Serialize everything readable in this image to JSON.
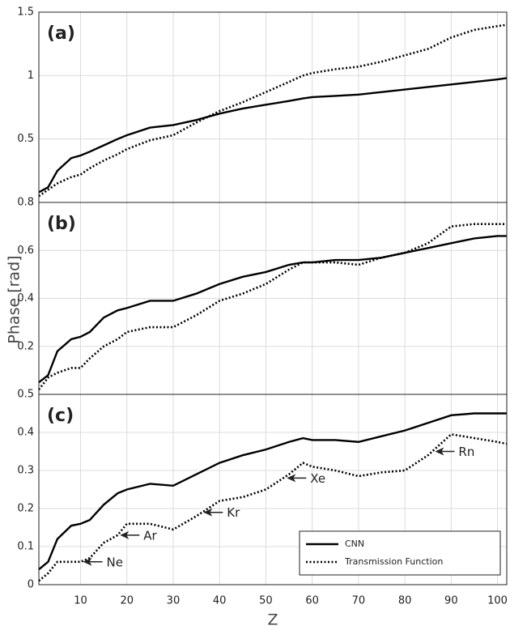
{
  "chart_data": [
    {
      "type": "line",
      "label": "(a)",
      "xlim": [
        1,
        102
      ],
      "ylim": [
        0,
        1.5
      ],
      "yticks": [
        0.5,
        1,
        1.5
      ],
      "grid": true,
      "x": [
        1,
        3,
        5,
        8,
        10,
        12,
        15,
        18,
        20,
        25,
        30,
        35,
        40,
        45,
        50,
        55,
        58,
        60,
        65,
        70,
        75,
        80,
        85,
        90,
        95,
        100,
        102
      ],
      "series": [
        {
          "name": "CNN",
          "color": "#000000",
          "style": "solid",
          "values": [
            0.08,
            0.12,
            0.25,
            0.35,
            0.37,
            0.4,
            0.45,
            0.5,
            0.53,
            0.59,
            0.61,
            0.65,
            0.7,
            0.74,
            0.77,
            0.8,
            0.82,
            0.83,
            0.84,
            0.85,
            0.87,
            0.89,
            0.91,
            0.93,
            0.95,
            0.97,
            0.98
          ]
        },
        {
          "name": "Transmission Function",
          "color": "#000000",
          "style": "dotted",
          "values": [
            0.05,
            0.1,
            0.15,
            0.2,
            0.22,
            0.27,
            0.33,
            0.38,
            0.42,
            0.49,
            0.53,
            0.63,
            0.72,
            0.79,
            0.87,
            0.95,
            1.0,
            1.02,
            1.05,
            1.07,
            1.11,
            1.16,
            1.21,
            1.3,
            1.36,
            1.39,
            1.4
          ]
        }
      ]
    },
    {
      "type": "line",
      "label": "(b)",
      "ylabel": "Phase [rad]",
      "xlim": [
        1,
        102
      ],
      "ylim": [
        0,
        0.8
      ],
      "yticks": [
        0.2,
        0.4,
        0.6,
        0.8
      ],
      "grid": true,
      "x": [
        1,
        3,
        5,
        8,
        10,
        12,
        15,
        18,
        20,
        25,
        30,
        35,
        40,
        45,
        50,
        55,
        58,
        60,
        65,
        70,
        75,
        80,
        85,
        90,
        95,
        100,
        102
      ],
      "series": [
        {
          "name": "CNN",
          "color": "#000000",
          "style": "solid",
          "values": [
            0.05,
            0.08,
            0.18,
            0.23,
            0.24,
            0.26,
            0.32,
            0.35,
            0.36,
            0.39,
            0.39,
            0.42,
            0.46,
            0.49,
            0.51,
            0.54,
            0.55,
            0.55,
            0.56,
            0.56,
            0.57,
            0.59,
            0.61,
            0.63,
            0.65,
            0.66,
            0.66
          ]
        },
        {
          "name": "Transmission Function",
          "color": "#000000",
          "style": "dotted",
          "values": [
            0.02,
            0.07,
            0.09,
            0.11,
            0.11,
            0.15,
            0.2,
            0.23,
            0.26,
            0.28,
            0.28,
            0.33,
            0.39,
            0.42,
            0.46,
            0.52,
            0.55,
            0.55,
            0.55,
            0.54,
            0.57,
            0.59,
            0.63,
            0.7,
            0.71,
            0.71,
            0.71
          ]
        }
      ]
    },
    {
      "type": "line",
      "label": "(c)",
      "xlabel": "Z",
      "xlim": [
        1,
        102
      ],
      "xticks": [
        10,
        20,
        30,
        40,
        50,
        60,
        70,
        80,
        90,
        100
      ],
      "ylim": [
        0,
        0.5
      ],
      "yticks": [
        0,
        0.1,
        0.2,
        0.3,
        0.4,
        0.5
      ],
      "grid": true,
      "legend": "lower right",
      "x": [
        1,
        3,
        5,
        8,
        10,
        12,
        15,
        18,
        20,
        25,
        30,
        35,
        40,
        45,
        50,
        55,
        58,
        60,
        65,
        70,
        75,
        80,
        85,
        90,
        95,
        100,
        102
      ],
      "series": [
        {
          "name": "CNN",
          "color": "#000000",
          "style": "solid",
          "values": [
            0.04,
            0.06,
            0.12,
            0.155,
            0.16,
            0.17,
            0.21,
            0.24,
            0.25,
            0.265,
            0.26,
            0.29,
            0.32,
            0.34,
            0.355,
            0.375,
            0.385,
            0.38,
            0.38,
            0.375,
            0.39,
            0.405,
            0.425,
            0.445,
            0.45,
            0.45,
            0.45
          ]
        },
        {
          "name": "Transmission Function",
          "color": "#000000",
          "style": "dotted",
          "values": [
            0.01,
            0.03,
            0.06,
            0.06,
            0.06,
            0.07,
            0.11,
            0.13,
            0.16,
            0.16,
            0.145,
            0.18,
            0.22,
            0.23,
            0.25,
            0.29,
            0.32,
            0.31,
            0.3,
            0.285,
            0.295,
            0.3,
            0.34,
            0.395,
            0.385,
            0.375,
            0.37
          ]
        }
      ],
      "annotations": [
        {
          "text": "Ne",
          "x": 10,
          "y": 0.06
        },
        {
          "text": "Ar",
          "x": 18,
          "y": 0.13
        },
        {
          "text": "Kr",
          "x": 36,
          "y": 0.19
        },
        {
          "text": "Xe",
          "x": 54,
          "y": 0.28
        },
        {
          "text": "Rn",
          "x": 86,
          "y": 0.35
        }
      ]
    }
  ]
}
